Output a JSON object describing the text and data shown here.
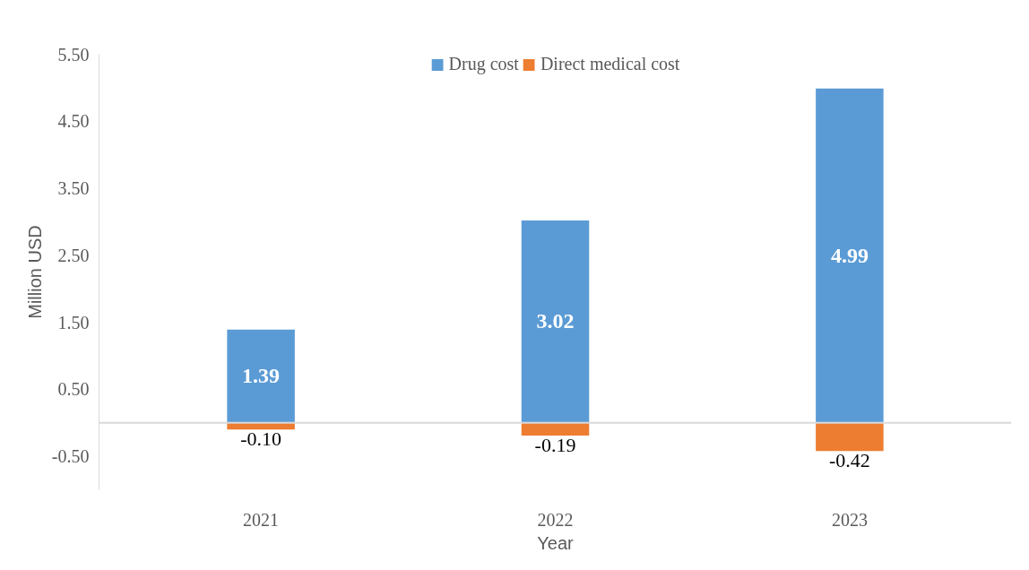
{
  "chart_data": {
    "type": "bar",
    "stacked": true,
    "xlabel": "Year",
    "ylabel": "Million USD",
    "categories": [
      "2021",
      "2022",
      "2023"
    ],
    "series": [
      {
        "name": "Drug cost",
        "color": "#5b9bd5",
        "values": [
          1.39,
          3.02,
          4.99
        ],
        "value_labels": [
          "1.39",
          "3.02",
          "4.99"
        ]
      },
      {
        "name": "Direct medical cost",
        "color": "#ed7d31",
        "values": [
          -0.1,
          -0.19,
          -0.42
        ],
        "value_labels": [
          "-0.10",
          "-0.19",
          "-0.42"
        ]
      }
    ],
    "ylim": [
      -1.0,
      5.5
    ],
    "yticks": [
      {
        "value": -0.5,
        "label": "-0.50"
      },
      {
        "value": 0.5,
        "label": "0.50"
      },
      {
        "value": 1.5,
        "label": "1.50"
      },
      {
        "value": 2.5,
        "label": "2.50"
      },
      {
        "value": 3.5,
        "label": "3.50"
      },
      {
        "value": 4.5,
        "label": "4.50"
      },
      {
        "value": 5.5,
        "label": "5.50"
      }
    ],
    "legend": "top",
    "grid": false
  }
}
